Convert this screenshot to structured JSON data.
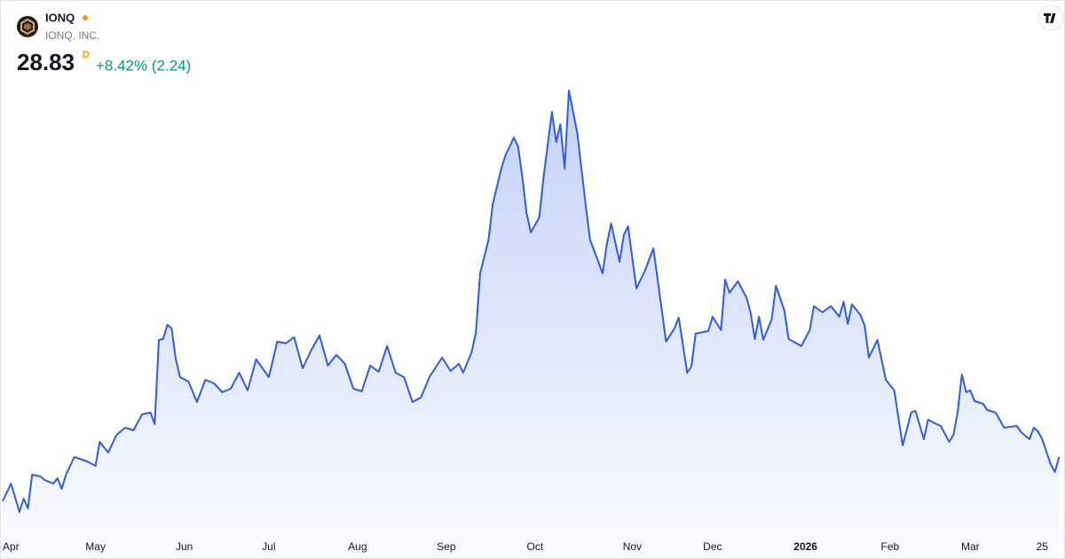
{
  "chart_data": {
    "type": "area",
    "title": "IONQ",
    "subtitle": "IONQ, INC.",
    "last_price": 28.83,
    "interval": "D",
    "change": "+8.42% (2.24)",
    "color": "#2f5ce6",
    "x": [
      0,
      2,
      4,
      5,
      6,
      7,
      9,
      10,
      12,
      13,
      14,
      15,
      17,
      20,
      22,
      23,
      25,
      27,
      29,
      31,
      33,
      35,
      36,
      37,
      38,
      39,
      40,
      41,
      42,
      44,
      46,
      48,
      50,
      52,
      54,
      56,
      58,
      60,
      63,
      65,
      67,
      69,
      71,
      73,
      75,
      77,
      79,
      81,
      83,
      85,
      87,
      89,
      91,
      93,
      95,
      97,
      99,
      101,
      104,
      106,
      108,
      109,
      111,
      112,
      113,
      115,
      116,
      118,
      119,
      121,
      122,
      123,
      124,
      125,
      127,
      128,
      130,
      131,
      132,
      133,
      134,
      136,
      138,
      139,
      142,
      143,
      144,
      146,
      147,
      148,
      150,
      152,
      154,
      155,
      157,
      159,
      160,
      162,
      163,
      164,
      167,
      168,
      170,
      171,
      172,
      174,
      176,
      177,
      178,
      179,
      180,
      182,
      183,
      185,
      186,
      189,
      191,
      192,
      194,
      196,
      198,
      199,
      200,
      201,
      203,
      204,
      205,
      207,
      209,
      211,
      213,
      215,
      216,
      218,
      219,
      221,
      222,
      224,
      225,
      226,
      227,
      228,
      229,
      230,
      232,
      233,
      235,
      237,
      240,
      241,
      243,
      244,
      245,
      246,
      248,
      249,
      250
    ],
    "values": [
      22.39,
      24.97,
      20.85,
      22.78,
      21.37,
      26.26,
      26.0,
      25.48,
      24.97,
      25.74,
      24.2,
      26.26,
      28.83,
      28.19,
      27.54,
      31.02,
      29.47,
      32.05,
      33.08,
      32.69,
      35.01,
      35.27,
      33.59,
      45.82,
      45.95,
      48.01,
      47.49,
      42.99,
      40.41,
      39.77,
      36.81,
      40.03,
      39.51,
      38.23,
      38.74,
      41.06,
      38.48,
      42.99,
      40.41,
      45.56,
      45.3,
      46.2,
      41.7,
      44.27,
      46.46,
      42.09,
      43.63,
      42.34,
      38.74,
      38.35,
      42.09,
      41.19,
      44.92,
      41.06,
      40.41,
      36.81,
      37.45,
      40.41,
      43.24,
      41.31,
      42.34,
      41.06,
      44.02,
      46.85,
      55.47,
      60.36,
      65.51,
      70.66,
      72.59,
      75.16,
      73.88,
      69.37,
      64.22,
      61.39,
      63.58,
      69.37,
      78.89,
      74.52,
      77.09,
      70.66,
      81.98,
      75.81,
      65.25,
      60.36,
      55.47,
      59.72,
      62.68,
      57.14,
      61.01,
      62.29,
      53.28,
      55.86,
      59.07,
      54.57,
      45.56,
      47.49,
      49.04,
      41.06,
      41.96,
      46.72,
      47.11,
      49.16,
      47.23,
      54.57,
      52.64,
      54.31,
      52.0,
      49.81,
      45.95,
      49.16,
      45.82,
      48.78,
      53.67,
      50.07,
      45.95,
      44.92,
      47.23,
      50.71,
      49.81,
      50.71,
      49.16,
      51.35,
      48.14,
      50.97,
      49.42,
      47.88,
      43.24,
      45.82,
      40.03,
      38.48,
      30.5,
      35.27,
      35.52,
      31.4,
      34.24,
      33.59,
      33.33,
      31.02,
      32.05,
      35.27,
      40.8,
      38.23,
      38.48,
      36.94,
      36.55,
      35.65,
      35.27,
      33.08,
      33.33,
      32.43,
      31.4,
      33.08,
      32.56,
      31.4,
      27.8,
      26.64,
      28.83
    ],
    "xlim": [
      -0.6,
      251.4
    ],
    "ylim": [
      17.89,
      83.53
    ],
    "xticks": [
      {
        "value": 2,
        "label": "Apr"
      },
      {
        "value": 22,
        "label": "May"
      },
      {
        "value": 43,
        "label": "Jun"
      },
      {
        "value": 63,
        "label": "Jul"
      },
      {
        "value": 84,
        "label": "Aug"
      },
      {
        "value": 105,
        "label": "Sep"
      },
      {
        "value": 126,
        "label": "Oct"
      },
      {
        "value": 149,
        "label": "Nov"
      },
      {
        "value": 168,
        "label": "Dec"
      },
      {
        "value": 190,
        "label": "2026"
      },
      {
        "value": 210,
        "label": "Feb"
      },
      {
        "value": 229,
        "label": "Mar"
      },
      {
        "value": 246,
        "label": "25"
      }
    ]
  }
}
